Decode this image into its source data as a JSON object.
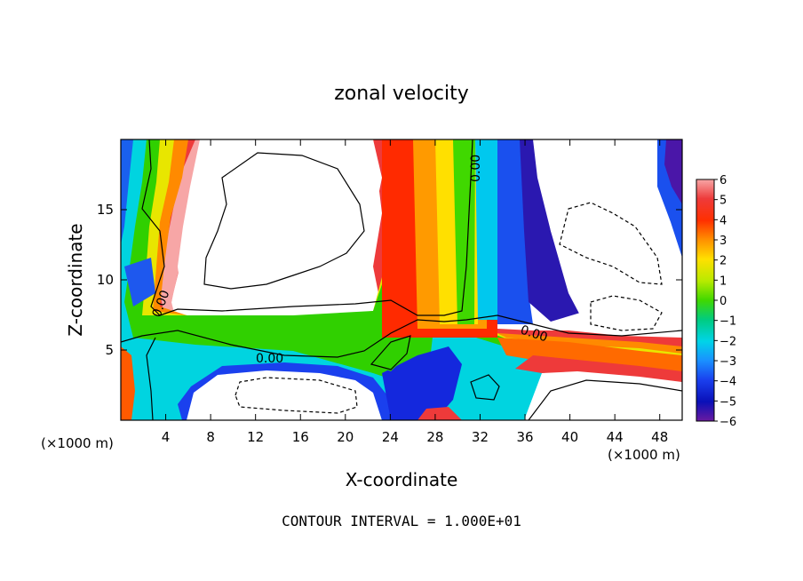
{
  "chart_data": {
    "type": "heatmap",
    "title": "zonal velocity",
    "xlabel": "X-coordinate",
    "ylabel": "Z-coordinate",
    "x_unit": "(×1000 m)",
    "z_unit": "(×1000 m)",
    "xlim": [
      0,
      50
    ],
    "ylim": [
      0,
      20
    ],
    "x_ticks": [
      4,
      8,
      12,
      16,
      20,
      24,
      28,
      32,
      36,
      40,
      44,
      48
    ],
    "y_ticks": [
      5,
      10,
      15
    ],
    "footer": "CONTOUR INTERVAL = 1.000E+01",
    "contour_label": "0.00",
    "colorbar": {
      "min": -6,
      "max": 6,
      "tick_labels": [
        "6",
        "5",
        "4",
        "3",
        "2",
        "1",
        "0",
        "−1",
        "−2",
        "−3",
        "−4",
        "−5",
        "−6"
      ],
      "colors": [
        "#f7a6a6",
        "#f27a7a",
        "#ee3a3a",
        "#ff2a00",
        "#ff7a00",
        "#ffb400",
        "#ffe000",
        "#d8ec00",
        "#a8e800",
        "#5ee000",
        "#00d040",
        "#00cc88",
        "#00d8c0",
        "#00c8ee",
        "#1a90ff",
        "#1e58ee",
        "#1428dd",
        "#0a10b8",
        "#3a10a0",
        "#6a1aa0"
      ]
    }
  }
}
